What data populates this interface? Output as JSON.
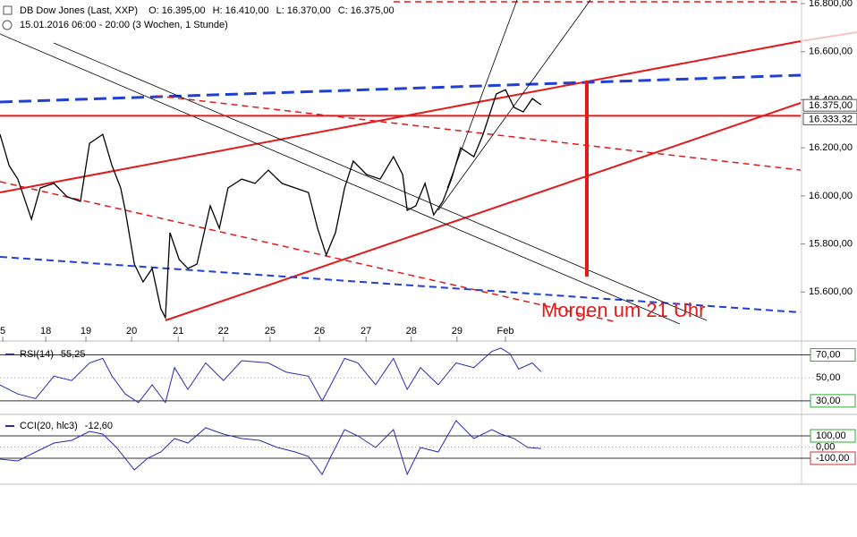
{
  "chart_data": [
    {
      "type": "line",
      "title": "DB Dow Jones (Last, XXP)",
      "ohlc": [
        {
          "name": "O:",
          "value": 16395,
          "label": "16.395,00"
        },
        {
          "name": "H:",
          "value": 16410,
          "label": "16.410,00"
        },
        {
          "name": "L:",
          "value": 16370,
          "label": "16.370,00"
        },
        {
          "name": "C:",
          "value": 16375,
          "label": "16.375,00"
        }
      ],
      "subtitle": "15.01.2016 06:00 - 20:00 (3 Wochen, 1 Stunde)",
      "annotation": "Morgen um 21 Uhr",
      "x": [
        -0.06,
        0.14,
        0.33,
        0.63,
        0.82,
        1.12,
        1.41,
        1.7,
        1.9,
        2.19,
        2.39,
        2.58,
        2.68,
        2.88,
        3.07,
        3.27,
        3.46,
        3.56,
        3.66,
        3.86,
        4.05,
        4.25,
        4.54,
        4.74,
        4.93,
        5.23,
        5.52,
        5.81,
        6.11,
        6.4,
        6.69,
        6.89,
        7.08,
        7.28,
        7.48,
        7.67,
        7.96,
        8.26,
        8.55,
        8.75,
        8.85,
        9.04,
        9.24,
        9.43,
        9.63,
        9.82,
        10.02,
        10.31,
        10.51,
        10.8,
        11.0,
        11.19,
        11.39,
        11.59,
        11.78
      ],
      "series": [
        {
          "name": "DB Dow Jones",
          "color": "#000000",
          "values": [
            16256,
            16126,
            16070,
            15903,
            16033,
            16052,
            15996,
            15977,
            16219,
            16256,
            16126,
            16033,
            15940,
            15716,
            15642,
            15698,
            15530,
            15493,
            15847,
            15735,
            15698,
            15716,
            15959,
            15865,
            16033,
            16070,
            16052,
            16107,
            16052,
            16033,
            16014,
            15865,
            15754,
            15847,
            16033,
            16145,
            16089,
            16070,
            16163,
            16089,
            15940,
            15959,
            16052,
            15921,
            15977,
            16070,
            16200,
            16163,
            16256,
            16424,
            16442,
            16368,
            16349,
            16405,
            16379
          ]
        }
      ],
      "xlim": [
        -0.06,
        17.46
      ],
      "ylim": [
        15400,
        16815
      ],
      "xticks": [
        {
          "value": 0,
          "label": "5"
        },
        {
          "value": 0.94,
          "label": "18"
        },
        {
          "value": 1.82,
          "label": "19"
        },
        {
          "value": 2.82,
          "label": "20"
        },
        {
          "value": 3.84,
          "label": "21"
        },
        {
          "value": 4.83,
          "label": "22"
        },
        {
          "value": 5.85,
          "label": "25"
        },
        {
          "value": 6.93,
          "label": "26"
        },
        {
          "value": 7.95,
          "label": "27"
        },
        {
          "value": 8.94,
          "label": "28"
        },
        {
          "value": 9.94,
          "label": "29"
        },
        {
          "value": 11.0,
          "label": "Feb"
        }
      ],
      "yticks": [
        {
          "value": 15600,
          "label": "15.600,00"
        },
        {
          "value": 15800,
          "label": "15.800,00"
        },
        {
          "value": 16000,
          "label": "16.000,00"
        },
        {
          "value": 16200,
          "label": "16.200,00"
        },
        {
          "value": 16400,
          "label": "16.400,00"
        },
        {
          "value": 16600,
          "label": "16.600,00"
        },
        {
          "value": 16800,
          "label": "16.800,00"
        }
      ],
      "markers": [
        {
          "value": 16375,
          "label": "16.375,00"
        },
        {
          "value": 16333.32,
          "label": "16.333,32",
          "color": "#e31a1c"
        }
      ]
    },
    {
      "type": "line",
      "title": "RSI(14)",
      "last": {
        "value": 55.25,
        "label": "55,25"
      },
      "x": [
        -0.06,
        0.33,
        0.72,
        1.12,
        1.51,
        1.9,
        2.19,
        2.39,
        2.68,
        2.97,
        3.27,
        3.56,
        3.76,
        4.05,
        4.44,
        4.83,
        5.23,
        5.81,
        6.2,
        6.69,
        6.99,
        7.18,
        7.48,
        7.77,
        8.16,
        8.55,
        8.85,
        9.14,
        9.53,
        9.92,
        10.31,
        10.7,
        10.9,
        11.1,
        11.29,
        11.59,
        11.78
      ],
      "series": [
        {
          "name": "RSI(14)",
          "color": "#2b2bb0",
          "values": [
            43.8,
            36,
            32,
            51.5,
            47.7,
            63,
            67,
            51.5,
            36,
            28.5,
            44,
            28.5,
            59,
            40,
            63,
            47.7,
            65,
            63,
            55,
            51.5,
            30,
            44,
            67,
            63,
            44,
            67,
            40,
            59,
            44,
            63,
            59,
            73,
            76,
            71,
            57.7,
            63,
            55.4
          ]
        }
      ],
      "xlim": [
        -0.06,
        17.46
      ],
      "ylim": [
        19,
        79
      ],
      "yticks": [
        {
          "value": 30,
          "label": "30,00"
        },
        {
          "value": 50,
          "label": "50,00"
        },
        {
          "value": 70,
          "label": "70,00"
        }
      ]
    },
    {
      "type": "line",
      "title": "CCI(20, hlc3)",
      "last": {
        "value": -12.6,
        "label": "-12,60"
      },
      "x": [
        -0.06,
        0.33,
        0.72,
        1.12,
        1.51,
        1.9,
        2.19,
        2.49,
        2.88,
        3.17,
        3.46,
        3.76,
        4.05,
        4.44,
        4.83,
        5.23,
        5.62,
        6.01,
        6.4,
        6.69,
        6.99,
        7.18,
        7.48,
        7.77,
        8.16,
        8.55,
        8.85,
        9.14,
        9.53,
        9.92,
        10.31,
        10.7,
        10.9,
        11.19,
        11.49,
        11.78
      ],
      "series": [
        {
          "name": "CCI(20, hlc3)",
          "color": "#2b2bb0",
          "values": [
            -108,
            -124,
            -44,
            36,
            60,
            140,
            116,
            -4,
            -204,
            -100,
            -44,
            76,
            36,
            172,
            116,
            76,
            60,
            -4,
            -44,
            -84,
            -244,
            -84,
            156,
            100,
            -4,
            156,
            -244,
            -4,
            -44,
            236,
            76,
            156,
            116,
            76,
            -4,
            -12.6
          ]
        }
      ],
      "xlim": [
        -0.06,
        17.46
      ],
      "ylim": [
        -324,
        276
      ],
      "yticks": [
        {
          "value": -100,
          "label": "-100,00"
        },
        {
          "value": 0,
          "label": "0,00"
        },
        {
          "value": 100,
          "label": "100,00"
        }
      ]
    }
  ]
}
